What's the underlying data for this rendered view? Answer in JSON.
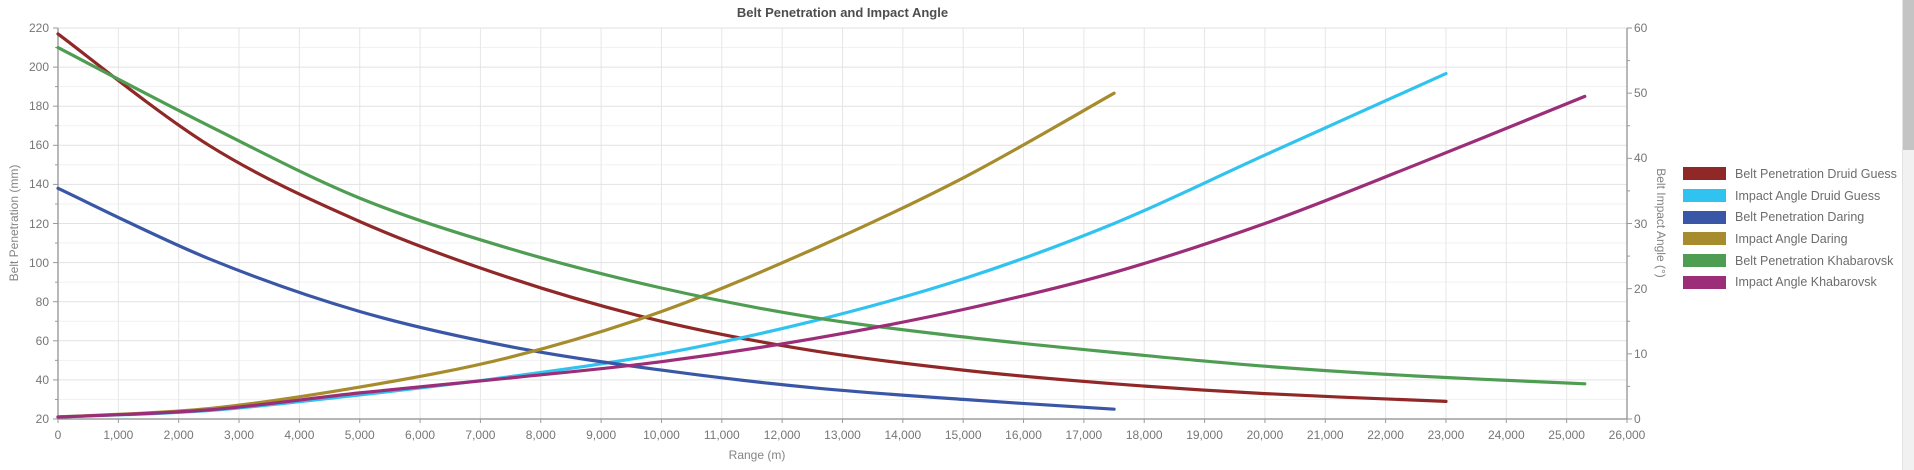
{
  "chart_data": {
    "type": "line",
    "title": "Belt Penetration and Impact Angle",
    "xlabel": "Range (m)",
    "x_range": [
      0,
      26000
    ],
    "x_tick_step": 1000,
    "x_tick_labels": [
      "0",
      "1,000",
      "2,000",
      "3,000",
      "4,000",
      "5,000",
      "6,000",
      "7,000",
      "8,000",
      "9,000",
      "10,000",
      "11,000",
      "12,000",
      "13,000",
      "14,000",
      "15,000",
      "16,000",
      "17,000",
      "18,000",
      "19,000",
      "20,000",
      "21,000",
      "22,000",
      "23,000",
      "24,000",
      "25,000",
      "26,000"
    ],
    "y_left": {
      "label": "Belt Penetration (mm)",
      "range": [
        20,
        220
      ],
      "tick_step": 20,
      "minor_step": 10,
      "tick_labels": [
        "20",
        "40",
        "60",
        "80",
        "100",
        "120",
        "140",
        "160",
        "180",
        "200",
        "220"
      ]
    },
    "y_right": {
      "label": "Belt Impact Angle (°)",
      "range": [
        0,
        60
      ],
      "tick_step": 10,
      "minor_step": 5,
      "tick_labels": [
        "0",
        "10",
        "20",
        "30",
        "40",
        "50",
        "60"
      ]
    },
    "grid": true,
    "legend_position": "right",
    "series": [
      {
        "name": "Belt Penetration Druid Guess",
        "axis": "left",
        "color": "#912828",
        "points": [
          [
            0,
            217
          ],
          [
            2500,
            160
          ],
          [
            5000,
            121
          ],
          [
            7500,
            92
          ],
          [
            10000,
            70
          ],
          [
            12500,
            55
          ],
          [
            15000,
            45
          ],
          [
            17500,
            38
          ],
          [
            20000,
            33
          ],
          [
            23000,
            29
          ]
        ]
      },
      {
        "name": "Impact Angle Druid Guess",
        "axis": "right",
        "color": "#31c3f0",
        "points": [
          [
            0,
            0.3
          ],
          [
            2500,
            1.3
          ],
          [
            5000,
            3.7
          ],
          [
            7500,
            6.5
          ],
          [
            10000,
            10
          ],
          [
            12500,
            15
          ],
          [
            15000,
            21.5
          ],
          [
            17500,
            30
          ],
          [
            20000,
            40.5
          ],
          [
            23000,
            53
          ]
        ]
      },
      {
        "name": "Belt Penetration Daring",
        "axis": "left",
        "color": "#3a57a7",
        "points": [
          [
            0,
            138
          ],
          [
            2500,
            102
          ],
          [
            5000,
            75
          ],
          [
            7500,
            57
          ],
          [
            10000,
            45
          ],
          [
            12500,
            36
          ],
          [
            15000,
            30
          ],
          [
            17500,
            25
          ]
        ]
      },
      {
        "name": "Impact Angle Daring",
        "axis": "right",
        "color": "#a68c2c",
        "points": [
          [
            0,
            0.3
          ],
          [
            2500,
            1.6
          ],
          [
            5000,
            4.9
          ],
          [
            7500,
            9.5
          ],
          [
            10000,
            16.5
          ],
          [
            12500,
            26
          ],
          [
            15000,
            37
          ],
          [
            17500,
            50
          ]
        ]
      },
      {
        "name": "Belt Penetration Khabarovsk",
        "axis": "left",
        "color": "#4f9d53",
        "points": [
          [
            0,
            210
          ],
          [
            2500,
            170
          ],
          [
            5000,
            133
          ],
          [
            7500,
            107
          ],
          [
            10000,
            87
          ],
          [
            12500,
            72
          ],
          [
            15000,
            62
          ],
          [
            17500,
            54
          ],
          [
            20000,
            47
          ],
          [
            22500,
            42
          ],
          [
            25300,
            38
          ]
        ]
      },
      {
        "name": "Impact Angle Khabarovsk",
        "axis": "right",
        "color": "#9b2d79",
        "points": [
          [
            0,
            0.3
          ],
          [
            2500,
            1.4
          ],
          [
            5000,
            4.0
          ],
          [
            7500,
            6.3
          ],
          [
            10000,
            8.8
          ],
          [
            12500,
            12.3
          ],
          [
            15000,
            16.8
          ],
          [
            17500,
            22.5
          ],
          [
            20000,
            30
          ],
          [
            22500,
            39
          ],
          [
            25300,
            49.5
          ]
        ]
      }
    ]
  },
  "legend": {
    "items": [
      {
        "label": "Belt Penetration Druid Guess",
        "color": "#912828"
      },
      {
        "label": "Impact Angle Druid Guess",
        "color": "#31c3f0"
      },
      {
        "label": "Belt Penetration Daring",
        "color": "#3a57a7"
      },
      {
        "label": "Impact Angle Daring",
        "color": "#a68c2c"
      },
      {
        "label": "Belt Penetration Khabarovsk",
        "color": "#4f9d53"
      },
      {
        "label": "Impact Angle Khabarovsk",
        "color": "#9b2d79"
      }
    ]
  },
  "colors": {
    "grid_major": "#e2e2e2",
    "grid_minor": "#f1f1f1",
    "grid_vertical": "#e6e6e6",
    "axis_line": "#8a8a8a",
    "tick_mark": "#9a9a9a",
    "tick_text": "#767676",
    "title_text": "#4d4d4d"
  }
}
